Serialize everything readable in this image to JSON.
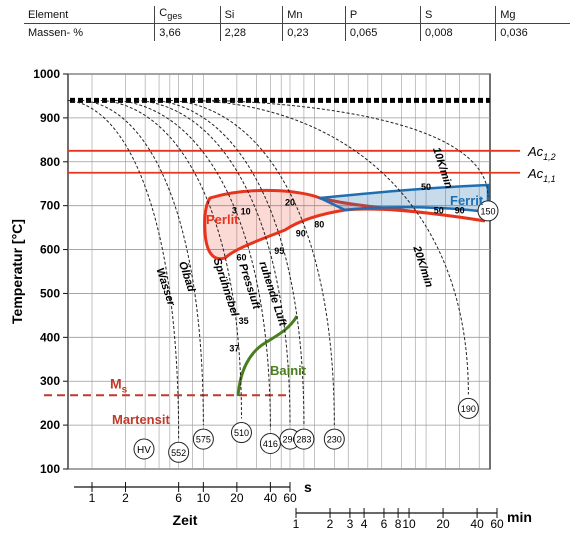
{
  "composition_table": {
    "headers": [
      "Element",
      "C",
      "Si",
      "Mn",
      "P",
      "S",
      "Mg"
    ],
    "carbon_subscript": "ges",
    "row_label": "Massen- %",
    "values": [
      "3,66",
      "2,28",
      "0,23",
      "0,065",
      "0,008",
      "0,036"
    ]
  },
  "chart_data": {
    "type": "line",
    "title": "",
    "ylabel": "Temperatur [°C]",
    "ylim": [
      100,
      1000
    ],
    "yticks": [
      100,
      200,
      300,
      400,
      500,
      600,
      700,
      800,
      900,
      1000
    ],
    "x_scale": "log",
    "xaxis_seconds": {
      "label": "Zeit",
      "unit": "s",
      "ticks": [
        1,
        2,
        6,
        10,
        20,
        40,
        60
      ],
      "range_s": [
        0.5,
        60
      ]
    },
    "xaxis_minutes": {
      "unit": "min",
      "ticks": [
        1,
        2,
        3,
        4,
        6,
        8,
        10,
        20,
        40,
        60
      ],
      "range_min": [
        1,
        60
      ]
    },
    "reference_lines": [
      {
        "label": "Ac",
        "sub": "1,2",
        "temperature": 825,
        "style": "solid",
        "color": "#e8341c"
      },
      {
        "label": "Ac",
        "sub": "1,1",
        "temperature": 775,
        "style": "solid",
        "color": "#e8341c"
      },
      {
        "label": "",
        "sub": "",
        "temperature": 940,
        "style": "dotted-thick",
        "color": "#000000"
      },
      {
        "label": "M",
        "sub": "s",
        "temperature": 268,
        "style": "dashed",
        "color": "#c0392b"
      }
    ],
    "series": [
      {
        "name": "Wasser",
        "start_s": 0.6,
        "end_s": 6,
        "end_temp": 170,
        "hardness": 552
      },
      {
        "name": "Ölbad",
        "start_s": 0.8,
        "end_s": 10,
        "end_temp": 200,
        "hardness": 575
      },
      {
        "name": "Sprühnebel",
        "start_s": 1.2,
        "end_s": 22,
        "end_temp": 215,
        "hardness": 510
      },
      {
        "name": "Pressluft",
        "start_s": 1.6,
        "end_s": 40,
        "end_temp": 190,
        "hardness": 416
      },
      {
        "name": "ruhende Luft",
        "start_s": 2.5,
        "end_s": 60,
        "end_temp": 200,
        "hardness": 290
      },
      {
        "name": "",
        "start_s": 3.5,
        "end_s": 80,
        "end_temp": 200,
        "hardness": 283
      },
      {
        "name": "",
        "start_s": 5,
        "end_s": 150,
        "end_temp": 200,
        "hardness": 230
      },
      {
        "name": "20K/min",
        "start_s": 8,
        "end_s": 2400,
        "end_temp": 270,
        "hardness": 190
      },
      {
        "name": "10K/min",
        "start_s": 12,
        "end_s": 4200,
        "end_temp": 720,
        "hardness": 150
      }
    ],
    "regions": [
      {
        "name": "Perlit",
        "color": "#e8341c"
      },
      {
        "name": "Ferrit",
        "color": "#1f6fb0"
      },
      {
        "name": "Bainit",
        "color": "#4a7d1e"
      },
      {
        "name": "Martensit",
        "color": "#c0392b"
      }
    ],
    "annotations": [
      {
        "text": "3",
        "s": 19,
        "temp": 682
      },
      {
        "text": "10",
        "s": 24,
        "temp": 680
      },
      {
        "text": "20",
        "s": 60,
        "temp": 700
      },
      {
        "text": "80",
        "s": 110,
        "temp": 650
      },
      {
        "text": "90",
        "s": 75,
        "temp": 630
      },
      {
        "text": "95",
        "s": 48,
        "temp": 590
      },
      {
        "text": "60",
        "s": 22,
        "temp": 575
      },
      {
        "text": "50",
        "s": 1000,
        "temp": 736
      },
      {
        "text": "50",
        "s": 1300,
        "temp": 682
      },
      {
        "text": "90",
        "s": 2000,
        "temp": 682
      },
      {
        "text": "37",
        "s": 19,
        "temp": 368
      },
      {
        "text": "35",
        "s": 23,
        "temp": 430
      }
    ],
    "legend_hv": "HV"
  }
}
